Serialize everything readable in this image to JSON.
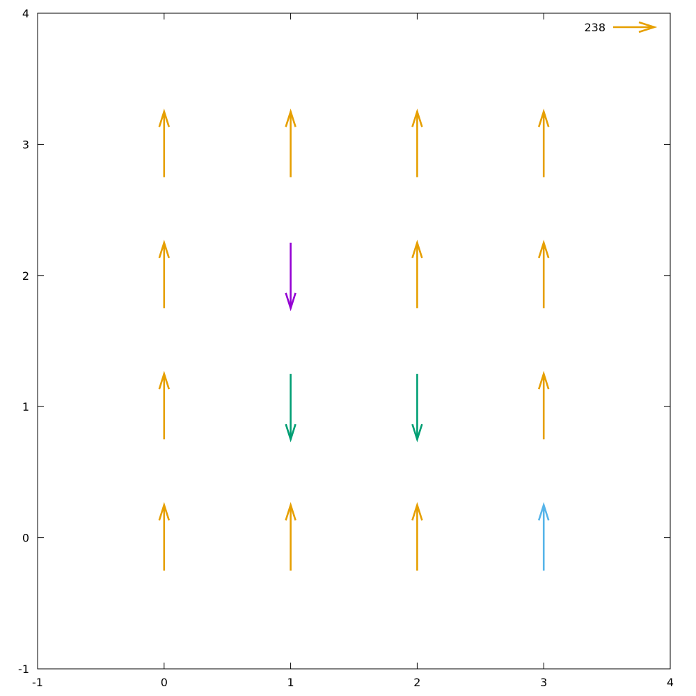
{
  "chart_data": {
    "type": "vector-field",
    "title": "",
    "xlabel": "",
    "ylabel": "",
    "xlim": [
      -1,
      4
    ],
    "ylim": [
      -1,
      4
    ],
    "x_ticks": [
      -1,
      0,
      1,
      2,
      3,
      4
    ],
    "y_ticks": [
      -1,
      0,
      1,
      2,
      3,
      4
    ],
    "x_tick_labels": [
      "-1",
      "0",
      "1",
      "2",
      "3",
      "4"
    ],
    "y_tick_labels": [
      "-1",
      "0",
      "1",
      "2",
      "3",
      "4"
    ],
    "grid": false,
    "legend": {
      "placement": "top-right",
      "entries": [
        {
          "label": "238",
          "color": "#e69f00"
        }
      ]
    },
    "colors": {
      "orange": "#e69f00",
      "purple": "#9400d3",
      "teal": "#009e73",
      "light-blue": "#56b4e9"
    },
    "vectors": [
      {
        "x": 0,
        "y": 0,
        "dx": 0,
        "dy": 0.5,
        "color": "#e69f00"
      },
      {
        "x": 1,
        "y": 0,
        "dx": 0,
        "dy": 0.5,
        "color": "#e69f00"
      },
      {
        "x": 2,
        "y": 0,
        "dx": 0,
        "dy": 0.5,
        "color": "#e69f00"
      },
      {
        "x": 3,
        "y": 0,
        "dx": 0,
        "dy": 0.5,
        "color": "#56b4e9"
      },
      {
        "x": 0,
        "y": 1,
        "dx": 0,
        "dy": 0.5,
        "color": "#e69f00"
      },
      {
        "x": 1,
        "y": 1,
        "dx": 0,
        "dy": -0.5,
        "color": "#009e73"
      },
      {
        "x": 2,
        "y": 1,
        "dx": 0,
        "dy": -0.5,
        "color": "#009e73"
      },
      {
        "x": 3,
        "y": 1,
        "dx": 0,
        "dy": 0.5,
        "color": "#e69f00"
      },
      {
        "x": 0,
        "y": 2,
        "dx": 0,
        "dy": 0.5,
        "color": "#e69f00"
      },
      {
        "x": 1,
        "y": 2,
        "dx": 0,
        "dy": -0.5,
        "color": "#9400d3"
      },
      {
        "x": 2,
        "y": 2,
        "dx": 0,
        "dy": 0.5,
        "color": "#e69f00"
      },
      {
        "x": 3,
        "y": 2,
        "dx": 0,
        "dy": 0.5,
        "color": "#e69f00"
      },
      {
        "x": 0,
        "y": 3,
        "dx": 0,
        "dy": 0.5,
        "color": "#e69f00"
      },
      {
        "x": 1,
        "y": 3,
        "dx": 0,
        "dy": 0.5,
        "color": "#e69f00"
      },
      {
        "x": 2,
        "y": 3,
        "dx": 0,
        "dy": 0.5,
        "color": "#e69f00"
      },
      {
        "x": 3,
        "y": 3,
        "dx": 0,
        "dy": 0.5,
        "color": "#e69f00"
      }
    ]
  }
}
